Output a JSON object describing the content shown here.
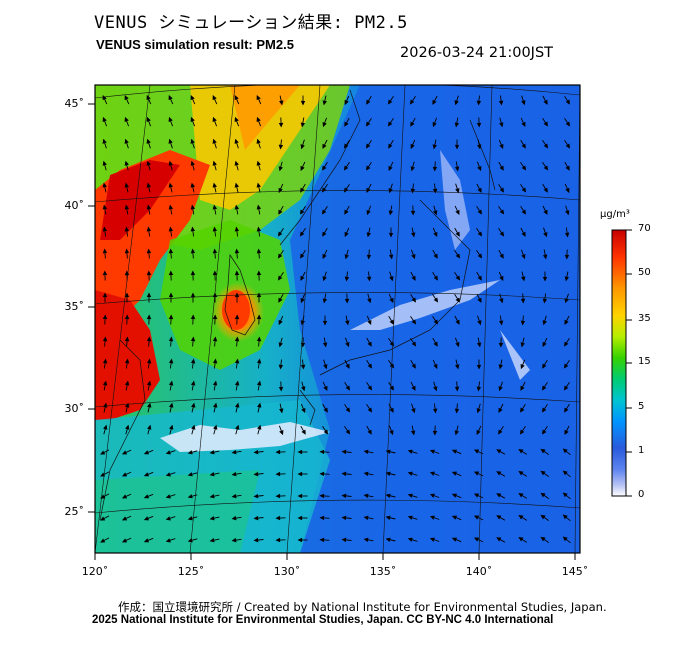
{
  "title_ja": "VENUS シミュレーション結果: PM2.5",
  "title_en": "VENUS simulation result: PM2.5",
  "datetime": "2026-03-24 21:00JST",
  "map": {
    "lat_labels": [
      "45˚",
      "40˚",
      "35˚",
      "30˚",
      "25˚"
    ],
    "lon_labels": [
      "120˚",
      "125˚",
      "130˚",
      "135˚",
      "140˚",
      "145˚"
    ]
  },
  "colorbar": {
    "unit": "μg/m³",
    "ticks": [
      "70",
      "50",
      "35",
      "15",
      "5",
      "1",
      "0"
    ],
    "colors": [
      "#d10000",
      "#ff3b00",
      "#ff9800",
      "#ffd000",
      "#b9ee00",
      "#3fd300",
      "#00cc66",
      "#00c8c8",
      "#0096ff",
      "#2a5bdc",
      "#4b7bf0",
      "#9aa8f2",
      "#ffffff"
    ]
  },
  "footer": {
    "credit": "作成：国立環境研究所 / Created by National Institute for Environmental Studies, Japan.",
    "copyright": "2025 National Institute for Environmental Studies, Japan. CC BY-NC 4.0 International"
  }
}
